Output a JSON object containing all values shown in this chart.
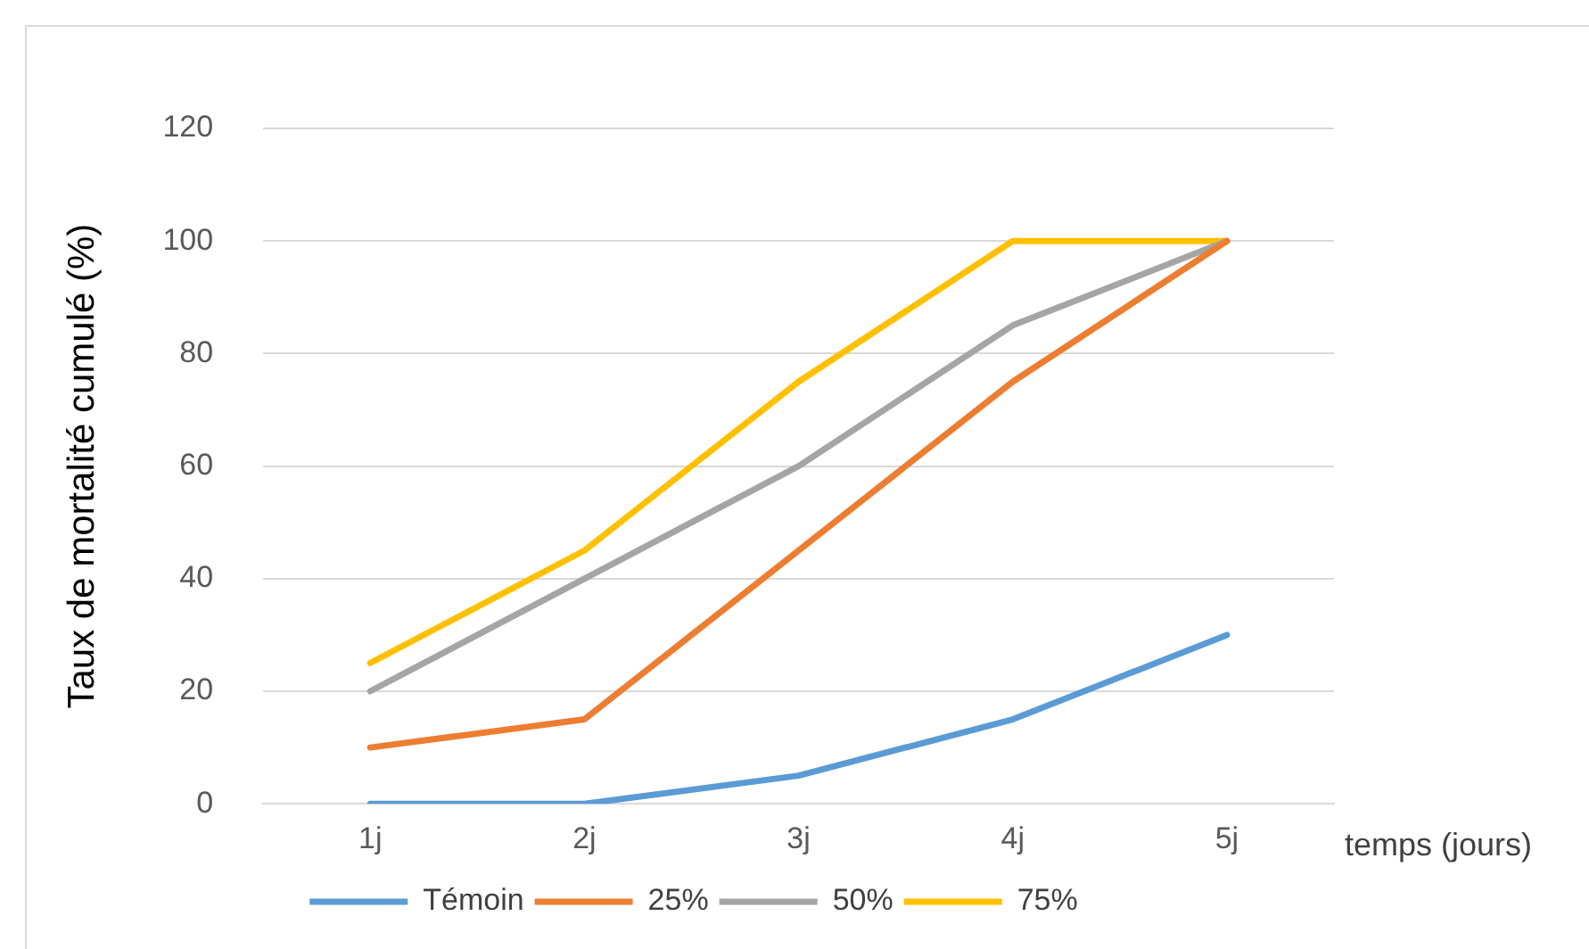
{
  "chart_data": {
    "type": "line",
    "xlabel": "temps (jours)",
    "ylabel": "Taux de mortalité cumulé (%)",
    "categories": [
      "1j",
      "2j",
      "3j",
      "4j",
      "5j"
    ],
    "series": [
      {
        "name": "Témoin",
        "color": "#5b9bd5",
        "values": [
          0,
          0,
          5,
          15,
          30
        ]
      },
      {
        "name": "25%",
        "color": "#ed7d31",
        "values": [
          10,
          15,
          45,
          75,
          100
        ]
      },
      {
        "name": "50%",
        "color": "#a5a5a5",
        "values": [
          20,
          40,
          60,
          85,
          100
        ]
      },
      {
        "name": "75%",
        "color": "#ffc000",
        "values": [
          25,
          45,
          75,
          100,
          100
        ]
      }
    ],
    "ylim": [
      0,
      120
    ],
    "yticks": [
      0,
      20,
      40,
      60,
      80,
      100,
      120
    ],
    "grid": "y",
    "legend": "bottom",
    "marker": "none",
    "line_style": "solid"
  }
}
